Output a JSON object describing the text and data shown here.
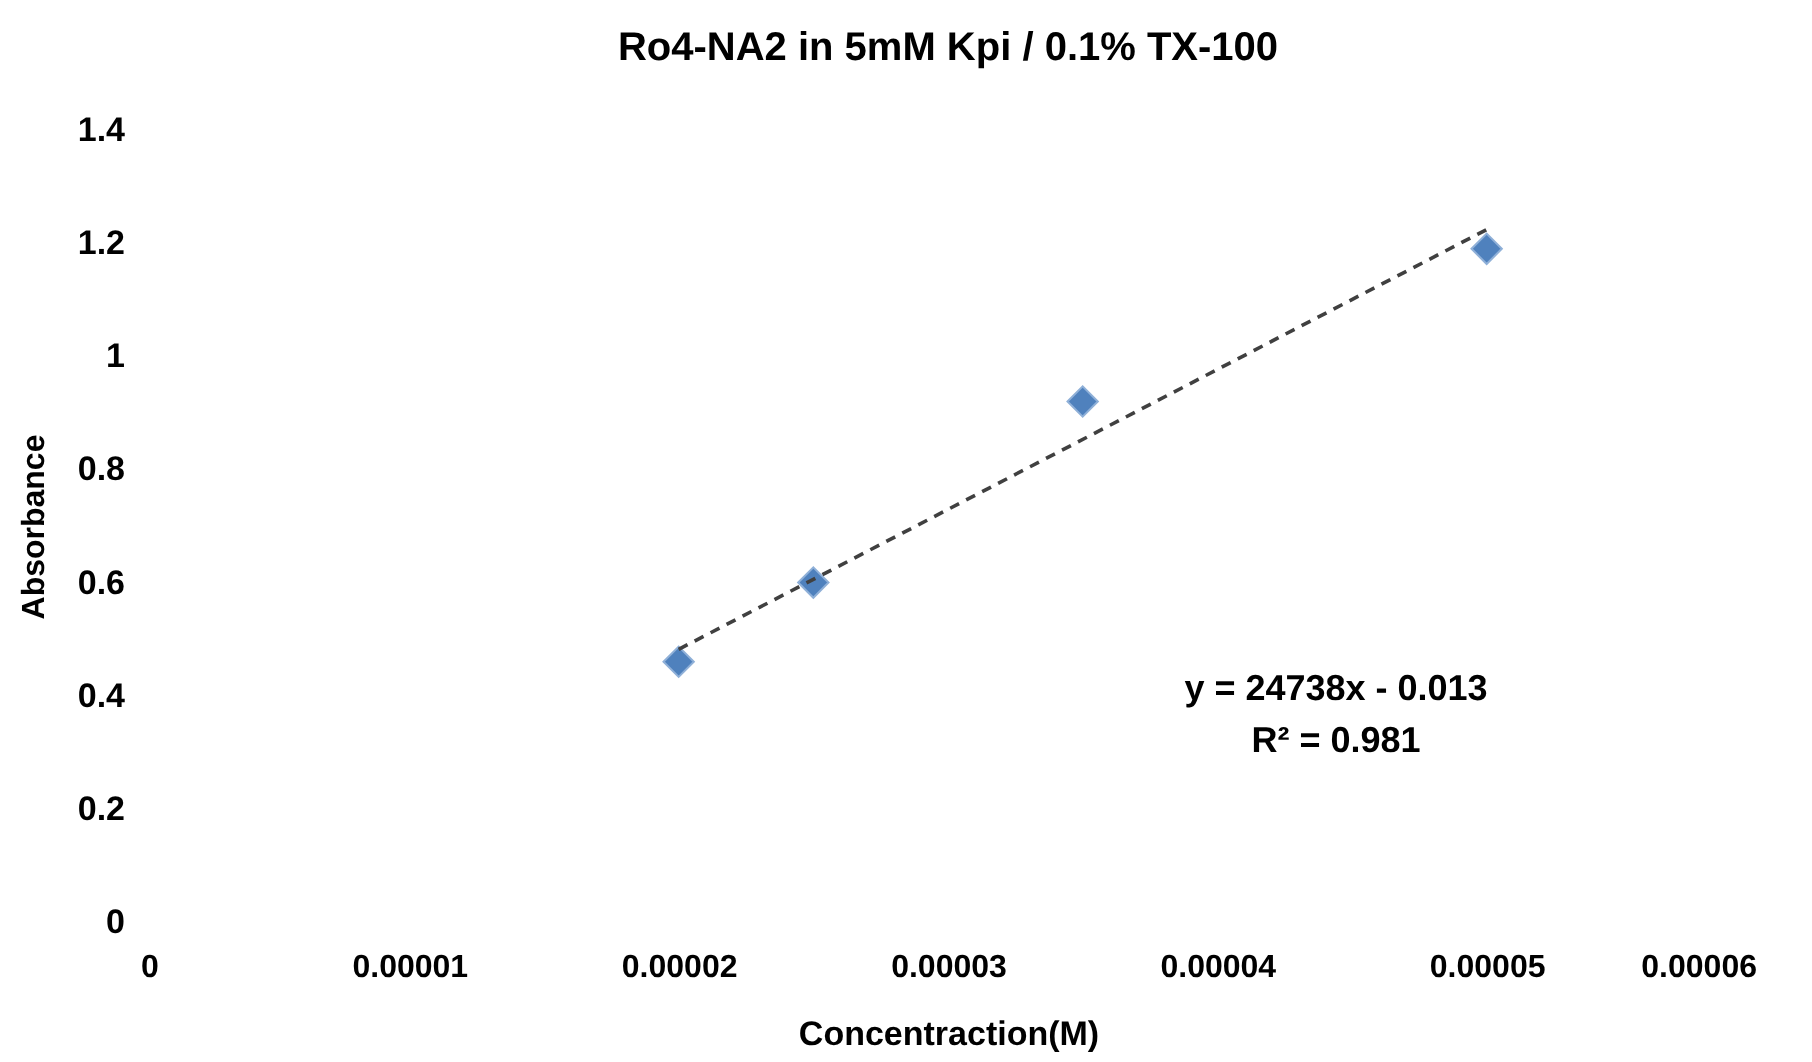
{
  "chart_data": {
    "type": "scatter",
    "title": "Ro4-NA2 in 5mM Kpi / 0.1%  TX-100",
    "xlabel": "Concentraction(M)",
    "ylabel": "Absorbance",
    "series": [
      {
        "color": "#4f81bd",
        "marker": "diamond",
        "x": [
          2e-05,
          2.5e-05,
          3.5e-05,
          5e-05
        ],
        "values": [
          0.46,
          0.6,
          0.92,
          1.19
        ]
      },
      {
        "type": "line",
        "color": "#404040",
        "line_style": "dashed",
        "marker": "none",
        "x": [
          2e-05,
          5e-05
        ],
        "values": [
          0.482,
          1.224
        ]
      }
    ],
    "annotations": [
      "y = 24738x - 0.013",
      "R² = 0.981"
    ],
    "xlim": [
      0,
      6e-05
    ],
    "xticks": [
      0,
      {
        "value": 1e-05,
        "label": "0.00001"
      },
      {
        "value": 2e-05,
        "label": "0.00002"
      },
      {
        "value": 3e-05,
        "label": "0.00003"
      },
      {
        "value": 4e-05,
        "label": "0.00004"
      },
      {
        "value": 5e-05,
        "label": "0.00005"
      },
      {
        "value": 6e-05,
        "label": "0.00006"
      }
    ],
    "ylim": [
      0,
      1.4
    ],
    "yticks": [
      0,
      0.2,
      0.4,
      0.6,
      0.8,
      1,
      1.2,
      1.4
    ],
    "grid": false
  }
}
